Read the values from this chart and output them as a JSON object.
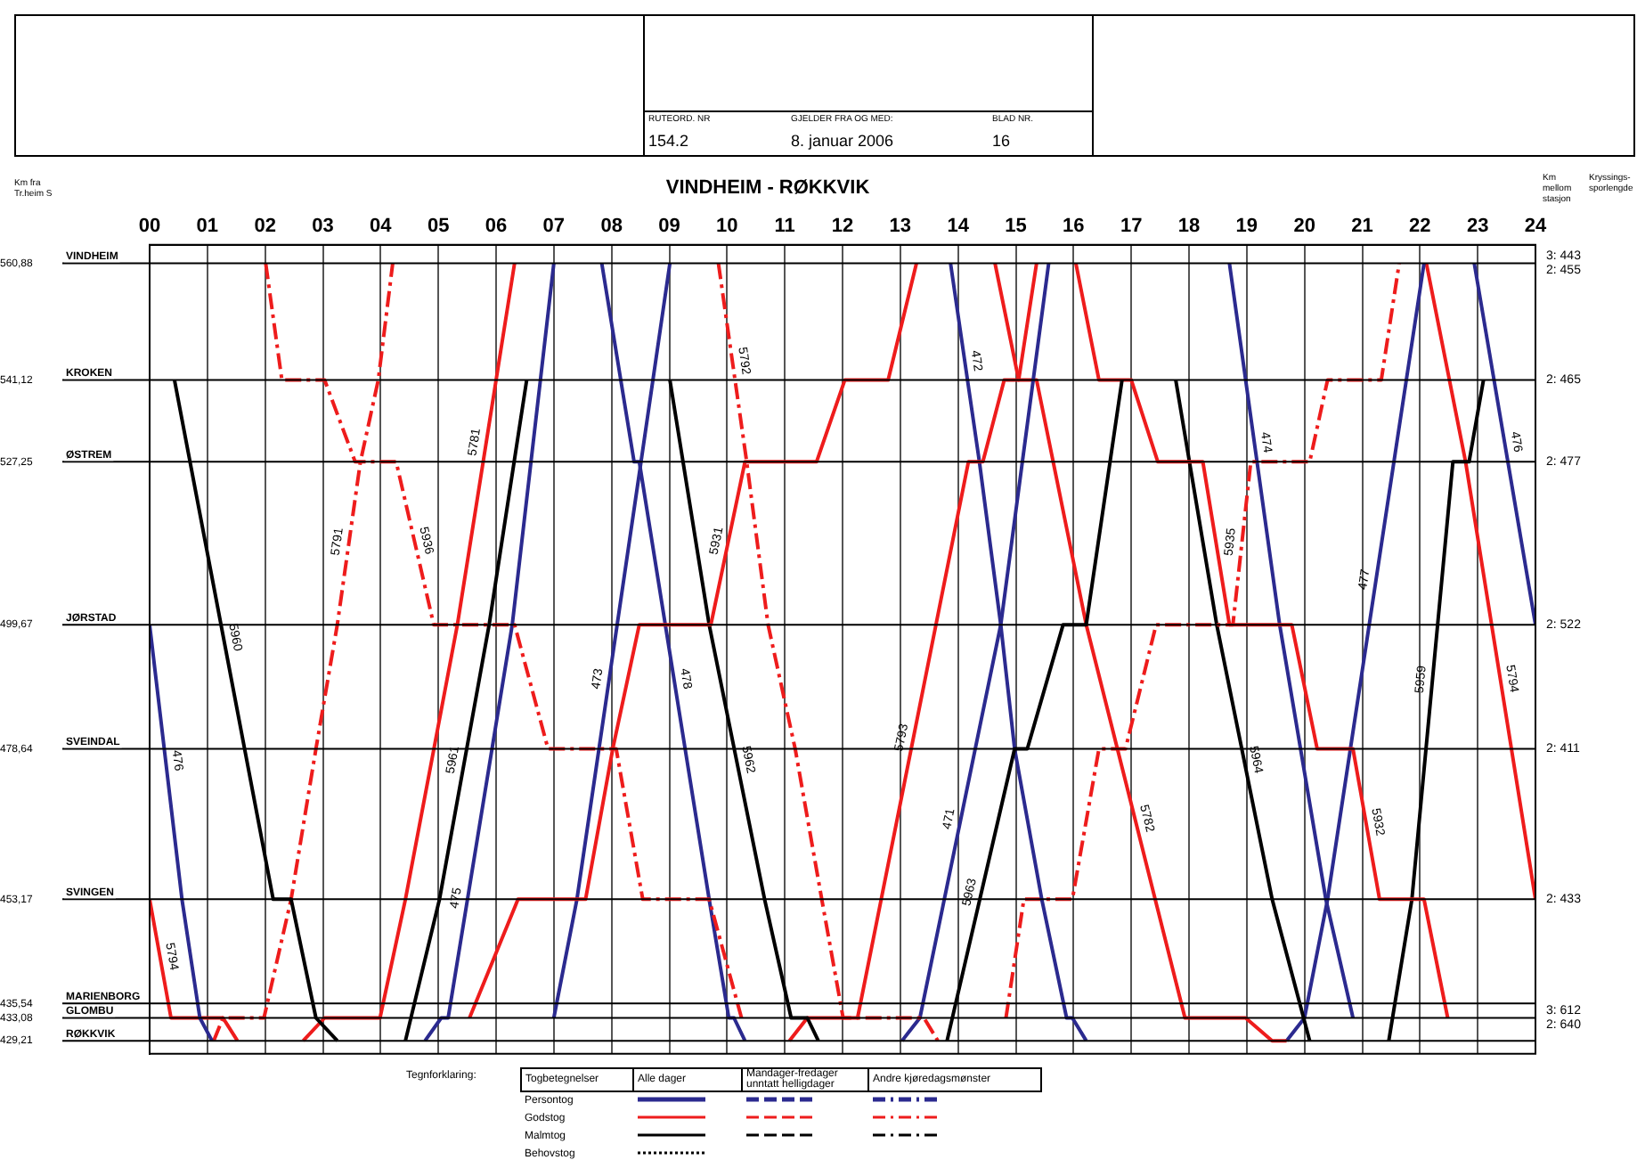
{
  "chart_data": {
    "type": "line",
    "title": "VINDHEIM - RØKKVIK",
    "ylabel": "Km fra Tr.heim S",
    "annotations": [
      "RUTEORD. NR",
      "154.2",
      "GJELDER FRA OG MED:",
      "8. januar 2006",
      "BLAD NR.",
      "16",
      "Km mellom stasjon",
      "Tegnforklaring:",
      "Togbetegnelser",
      "Alle dager",
      "Mandager-fredager unntatt helligdager",
      "Andre kjøredagsmønster",
      "Persontog",
      "Godstog",
      "Malmtog",
      "Behovstog",
      "3: 443\n2: 455",
      "2: 465",
      "2: 477",
      "2: 522",
      "2: 411",
      "2: 433",
      "3: 612\n2: 640",
      "Kryssings-sporlengde"
    ],
    "xlim": [
      0,
      24
    ],
    "xticks": [
      {
        "value": 0,
        "label": "00"
      },
      {
        "value": 1,
        "label": "01"
      },
      {
        "value": 2,
        "label": "02"
      },
      {
        "value": 3,
        "label": "03"
      },
      {
        "value": 4,
        "label": "04"
      },
      {
        "value": 5,
        "label": "05"
      },
      {
        "value": 6,
        "label": "06"
      },
      {
        "value": 7,
        "label": "07"
      },
      {
        "value": 8,
        "label": "08"
      },
      {
        "value": 9,
        "label": "09"
      },
      {
        "value": 10,
        "label": "10"
      },
      {
        "value": 11,
        "label": "11"
      },
      {
        "value": 12,
        "label": "12"
      },
      {
        "value": 13,
        "label": "13"
      },
      {
        "value": 14,
        "label": "14"
      },
      {
        "value": 15,
        "label": "15"
      },
      {
        "value": 16,
        "label": "16"
      },
      {
        "value": 17,
        "label": "17"
      },
      {
        "value": 18,
        "label": "18"
      },
      {
        "value": 19,
        "label": "19"
      },
      {
        "value": 20,
        "label": "20"
      },
      {
        "value": 21,
        "label": "21"
      },
      {
        "value": 22,
        "label": "22"
      },
      {
        "value": 23,
        "label": "23"
      },
      {
        "value": 24,
        "label": "24"
      }
    ],
    "ylim": [
      427,
      564
    ],
    "yticks": [
      {
        "value": 560.88,
        "label": "560,88"
      },
      {
        "value": 541.12,
        "label": "541,12"
      },
      {
        "value": 527.25,
        "label": "527,25"
      },
      {
        "value": 499.67,
        "label": "499,67"
      },
      {
        "value": 478.64,
        "label": "478,64"
      },
      {
        "value": 453.17,
        "label": "453,17"
      },
      {
        "value": 435.54,
        "label": "435,54"
      },
      {
        "value": 433.08,
        "label": "433,08"
      },
      {
        "value": 429.21,
        "label": "429,21"
      }
    ],
    "ref_lines": [
      {
        "axis": "y",
        "value": 560.88,
        "label": "VINDHEIM"
      },
      {
        "axis": "y",
        "value": 541.12,
        "label": "KROKEN"
      },
      {
        "axis": "y",
        "value": 527.25,
        "label": "ØSTREM"
      },
      {
        "axis": "y",
        "value": 499.67,
        "label": "JØRSTAD"
      },
      {
        "axis": "y",
        "value": 478.64,
        "label": "SVEINDAL"
      },
      {
        "axis": "y",
        "value": 453.17,
        "label": "SVINGEN"
      },
      {
        "axis": "y",
        "value": 435.54,
        "label": "MARIENBORG"
      },
      {
        "axis": "y",
        "value": 433.08,
        "label": "GLOMBU"
      },
      {
        "axis": "y",
        "value": 429.21,
        "label": "RØKKVIK"
      }
    ],
    "grid": "x",
    "legend": false,
    "series": [
      {
        "name": "476",
        "color": "#2b2a8f",
        "x": [
          0,
          0.56,
          0.87,
          1.08
        ],
        "values": [
          499.67,
          453.17,
          433.08,
          429.21
        ]
      },
      {
        "name": "5794",
        "color": "#ee1c1c",
        "x": [
          0,
          0.37,
          1.27,
          1.52
        ],
        "values": [
          453.17,
          433.08,
          433.08,
          429.21
        ]
      },
      {
        "name": "5960",
        "color": "#000000",
        "x": [
          0.43,
          2.14,
          2.45,
          2.88,
          3.25
        ],
        "values": [
          541.12,
          453.17,
          453.17,
          433.08,
          429.21
        ]
      },
      {
        "name": "5791",
        "color": "#ee1c1c",
        "line_style": "dashed",
        "x": [
          1.11,
          1.27,
          1.98,
          2.45,
          2.88,
          3.25,
          3.65,
          3.96,
          4.21
        ],
        "values": [
          429.21,
          433.08,
          433.08,
          453.17,
          478.64,
          499.67,
          527.25,
          541.12,
          560.88
        ]
      },
      {
        "name": "5936",
        "color": "#ee1c1c",
        "line_style": "dashed",
        "x": [
          2.01,
          2.29,
          3.03,
          3.56,
          4.27,
          4.92,
          6.32,
          6.9,
          8.08,
          8.54,
          9.69,
          10.25
        ],
        "values": [
          560.88,
          541.12,
          541.12,
          527.25,
          527.25,
          499.67,
          499.67,
          478.64,
          478.64,
          453.17,
          453.17,
          433.08
        ]
      },
      {
        "name": "5781",
        "color": "#ee1c1c",
        "x": [
          2.66,
          3.03,
          3.99,
          4.43,
          5.33,
          6.32
        ],
        "values": [
          429.21,
          433.08,
          433.08,
          453.17,
          499.67,
          560.88
        ]
      },
      {
        "name": "5961",
        "color": "#000000",
        "x": [
          4.43,
          5.02,
          5.88,
          6.53
        ],
        "values": [
          429.21,
          453.17,
          499.67,
          541.12
        ]
      },
      {
        "name": "475",
        "color": "#2b2a8f",
        "x": [
          4.77,
          5.05,
          5.17,
          6.28,
          7
        ],
        "values": [
          429.21,
          433.08,
          433.08,
          499.67,
          560.88
        ]
      },
      {
        "name": "5931",
        "color": "#ee1c1c",
        "x": [
          5.54,
          6.38,
          7.55,
          8.02,
          8.48,
          9.72,
          10.31,
          11.55,
          12.04,
          12.79,
          13.28
        ],
        "values": [
          433.08,
          453.17,
          453.17,
          478.64,
          499.67,
          499.67,
          527.25,
          527.25,
          541.12,
          541.12,
          560.88
        ]
      },
      {
        "name": "473",
        "color": "#2b2a8f",
        "x": [
          7,
          7.4,
          8.51,
          9.01
        ],
        "values": [
          433.08,
          453.17,
          527.25,
          560.88
        ]
      },
      {
        "name": "478",
        "color": "#2b2a8f",
        "x": [
          7.83,
          8.39,
          8.48,
          9.69,
          10.03,
          10.12,
          10.31
        ],
        "values": [
          560.88,
          527.25,
          527.25,
          453.17,
          433.08,
          433.08,
          429.21
        ]
      },
      {
        "name": "5962",
        "color": "#000000",
        "x": [
          9.01,
          9.69,
          10.65,
          11.11,
          11.39,
          11.58
        ],
        "values": [
          541.12,
          499.67,
          453.17,
          433.08,
          433.08,
          429.21
        ]
      },
      {
        "name": "5792",
        "color": "#ee1c1c",
        "line_style": "dashed",
        "x": [
          9.85,
          10.34,
          10.71,
          11.18,
          11.64,
          12.01,
          13.41,
          13.65
        ],
        "values": [
          560.88,
          527.25,
          499.67,
          478.64,
          453.17,
          433.08,
          433.08,
          429.21
        ]
      },
      {
        "name": "5793",
        "color": "#ee1c1c",
        "x": [
          11.08,
          11.39,
          12.26,
          14.18,
          14.43,
          14.8,
          15.05,
          15.36
        ],
        "values": [
          429.21,
          433.08,
          433.08,
          527.25,
          527.25,
          541.12,
          541.12,
          560.88
        ]
      },
      {
        "name": "471",
        "color": "#2b2a8f",
        "x": [
          13.03,
          13.34,
          14.74,
          15.57
        ],
        "values": [
          429.21,
          433.08,
          499.67,
          560.88
        ]
      },
      {
        "name": "5963",
        "color": "#000000",
        "x": [
          13.81,
          14.98,
          15.2,
          15.82,
          16.22,
          16.84
        ],
        "values": [
          429.21,
          478.64,
          478.64,
          499.67,
          499.67,
          541.12
        ]
      },
      {
        "name": "472",
        "color": "#2b2a8f",
        "x": [
          13.87,
          14.37,
          14.74,
          14.98,
          15.45,
          15.88,
          15.98,
          16.22
        ],
        "values": [
          560.88,
          527.25,
          499.67,
          478.64,
          453.17,
          433.08,
          433.08,
          429.21
        ]
      },
      {
        "name": "5782",
        "color": "#ee1c1c",
        "x": [
          14.64,
          15.05,
          15.36,
          16.22,
          17.93,
          18.98,
          19.44,
          19.69
        ],
        "values": [
          560.88,
          541.12,
          541.12,
          499.67,
          433.08,
          433.08,
          429.21,
          429.21
        ]
      },
      {
        "name": "5935",
        "color": "#ee1c1c",
        "line_style": "dashed",
        "x": [
          14.83,
          15.14,
          15.98,
          16.44,
          16.9,
          17.43,
          18.76,
          19.07,
          20.09,
          20.4,
          21.33,
          21.64
        ],
        "values": [
          433.08,
          453.17,
          453.17,
          478.64,
          478.64,
          499.67,
          499.67,
          527.25,
          527.25,
          541.12,
          541.12,
          560.88
        ]
      },
      {
        "name": "5932",
        "color": "#ee1c1c",
        "x": [
          16.04,
          16.44,
          17,
          17.46,
          18.24,
          18.7,
          19.78,
          20.22,
          20.84,
          21.3,
          22.07,
          22.48
        ],
        "values": [
          560.88,
          541.12,
          541.12,
          527.25,
          527.25,
          499.67,
          499.67,
          478.64,
          478.64,
          453.17,
          453.17,
          433.08
        ]
      },
      {
        "name": "5964",
        "color": "#000000",
        "x": [
          17.77,
          18.48,
          19.44,
          20.09
        ],
        "values": [
          541.12,
          499.67,
          453.17,
          429.21
        ]
      },
      {
        "name": "474",
        "color": "#2b2a8f",
        "x": [
          18.7,
          19.57,
          20.37,
          20.84
        ],
        "values": [
          560.88,
          499.67,
          453.17,
          433.08
        ]
      },
      {
        "name": "477",
        "color": "#2b2a8f",
        "x": [
          19.69,
          20,
          20.4,
          22.07
        ],
        "values": [
          429.21,
          433.08,
          453.17,
          560.88
        ]
      },
      {
        "name": "5959",
        "color": "#000000",
        "x": [
          21.46,
          21.86,
          22.57,
          22.85,
          23.1
        ],
        "values": [
          429.21,
          453.17,
          527.25,
          527.25,
          541.12
        ]
      },
      {
        "name": "5794",
        "color": "#ee1c1c",
        "x": [
          22.11,
          22.79,
          24
        ],
        "values": [
          560.88,
          527.25,
          453.17
        ]
      },
      {
        "name": "476",
        "color": "#2b2a8f",
        "x": [
          22.94,
          24
        ],
        "values": [
          560.88,
          499.67
        ]
      }
    ]
  }
}
